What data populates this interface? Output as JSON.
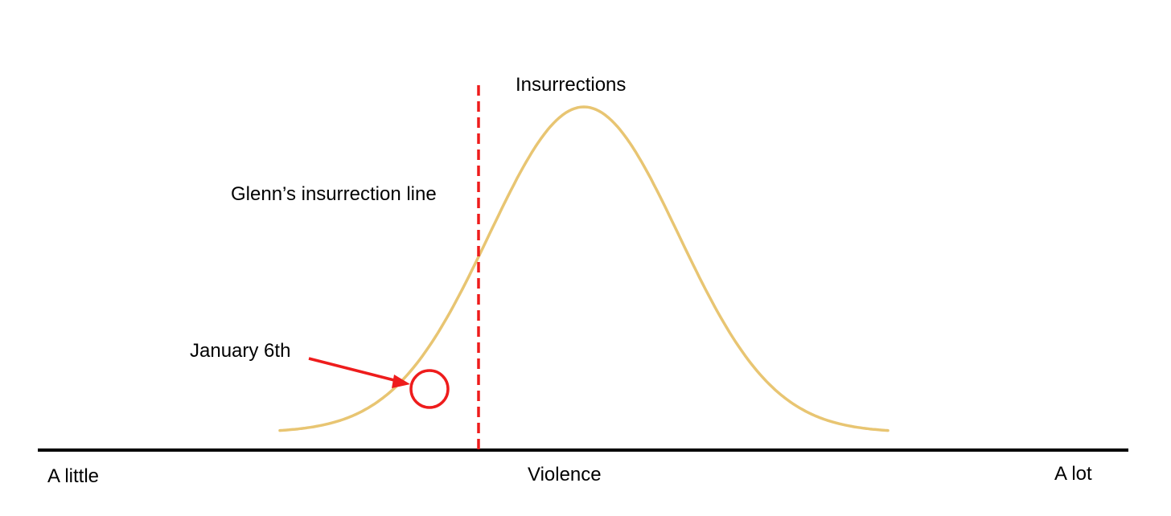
{
  "labels": {
    "curve": "Insurrections",
    "threshold_line": "Glenn’s insurrection line",
    "highlight_point": "January 6th",
    "axis_left": "A little",
    "axis_center": "Violence",
    "axis_right": "A lot"
  },
  "colors": {
    "curve": "#e8c572",
    "threshold": "#ee1c1c",
    "annotation": "#ee1c1c",
    "axis": "#000000"
  },
  "curve": {
    "shape": "bell",
    "peak_position": 0.5,
    "spread": 0.156
  },
  "threshold": {
    "position_on_axis": 0.326,
    "style": "dashed"
  },
  "highlight": {
    "position_on_axis": 0.246,
    "marker": "circle with arrow"
  }
}
